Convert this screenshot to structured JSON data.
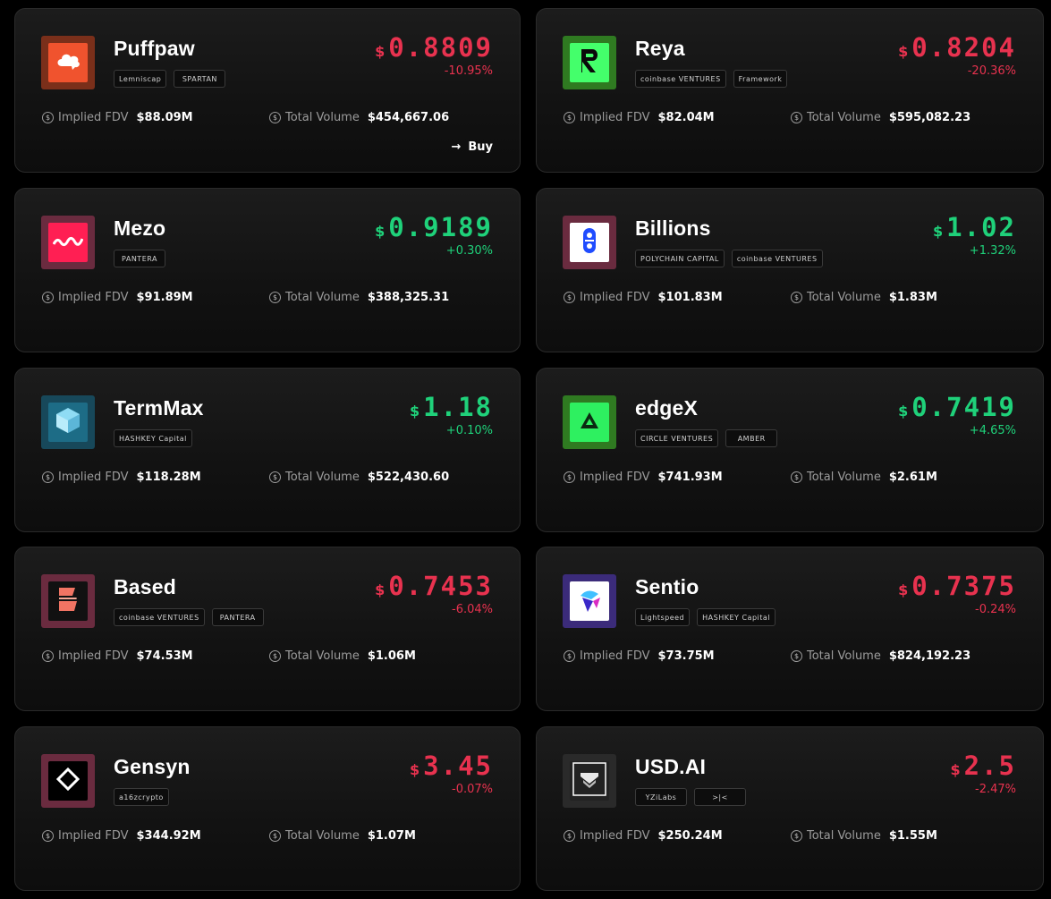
{
  "labels": {
    "fdv": "Implied FDV",
    "volume": "Total Volume",
    "currency": "$"
  },
  "cards": [
    {
      "name": "Puffpaw",
      "price": "0.8809",
      "change": "-10.95%",
      "trend": "down",
      "fdv": "$88.09M",
      "volume": "$454,667.06",
      "backers": [
        "Lemniscap",
        "SPARTAN"
      ],
      "logo": {
        "icon": "cloud-icon",
        "frame": "#7a2f1a",
        "bg": "#f0532e"
      },
      "buy_label": "Buy"
    },
    {
      "name": "Reya",
      "price": "0.8204",
      "change": "-20.36%",
      "trend": "down",
      "fdv": "$82.04M",
      "volume": "$595,082.23",
      "backers": [
        "coinbase VENTURES",
        "Framework"
      ],
      "logo": {
        "icon": "r-letter-icon",
        "frame": "#2f7a21",
        "bg": "#44ff6b"
      }
    },
    {
      "name": "Mezo",
      "price": "0.9189",
      "change": "+0.30%",
      "trend": "up",
      "fdv": "$91.89M",
      "volume": "$388,325.31",
      "backers": [
        "PANTERA"
      ],
      "logo": {
        "icon": "wave-icon",
        "frame": "#6a2b3f",
        "bg": "#ff1f53"
      }
    },
    {
      "name": "Billions",
      "price": "1.02",
      "change": "+1.32%",
      "trend": "up",
      "fdv": "$101.83M",
      "volume": "$1.83M",
      "backers": [
        "POLYCHAIN CAPITAL",
        "coinbase VENTURES"
      ],
      "logo": {
        "icon": "chain-icon",
        "frame": "#6a2b3f",
        "bg": "#ffffff"
      }
    },
    {
      "name": "TermMax",
      "price": "1.18",
      "change": "+0.10%",
      "trend": "up",
      "fdv": "$118.28M",
      "volume": "$522,430.60",
      "backers": [
        "HASHKEY Capital"
      ],
      "logo": {
        "icon": "cube-icon",
        "frame": "#17485a",
        "bg": "#1d6c86"
      }
    },
    {
      "name": "edgeX",
      "price": "0.7419",
      "change": "+4.65%",
      "trend": "up",
      "fdv": "$741.93M",
      "volume": "$2.61M",
      "backers": [
        "CIRCLE VENTURES",
        "AMBER"
      ],
      "logo": {
        "icon": "triangle-icon",
        "frame": "#2f7a21",
        "bg": "#2ef060"
      }
    },
    {
      "name": "Based",
      "price": "0.7453",
      "change": "-6.04%",
      "trend": "down",
      "fdv": "$74.53M",
      "volume": "$1.06M",
      "backers": [
        "coinbase VENTURES",
        "PANTERA"
      ],
      "logo": {
        "icon": "b-shape-icon",
        "frame": "#6a2b3f",
        "bg": "#111111"
      }
    },
    {
      "name": "Sentio",
      "price": "0.7375",
      "change": "-0.24%",
      "trend": "down",
      "fdv": "$73.75M",
      "volume": "$824,192.23",
      "backers": [
        "Lightspeed",
        "HASHKEY Capital"
      ],
      "logo": {
        "icon": "sentio-icon",
        "frame": "#3b2b7a",
        "bg": "#ffffff"
      }
    },
    {
      "name": "Gensyn",
      "price": "3.45",
      "change": "-0.07%",
      "trend": "down",
      "fdv": "$344.92M",
      "volume": "$1.07M",
      "backers": [
        "a16zcrypto"
      ],
      "logo": {
        "icon": "diamond-icon",
        "frame": "#6a2b3f",
        "bg": "#000000"
      }
    },
    {
      "name": "USD.AI",
      "price": "2.5",
      "change": "-2.47%",
      "trend": "down",
      "fdv": "$250.24M",
      "volume": "$1.55M",
      "backers": [
        "YZiLabs",
        ">|<"
      ],
      "logo": {
        "icon": "layers-icon",
        "frame": "#2a2a2a",
        "bg": "#222222"
      }
    }
  ]
}
